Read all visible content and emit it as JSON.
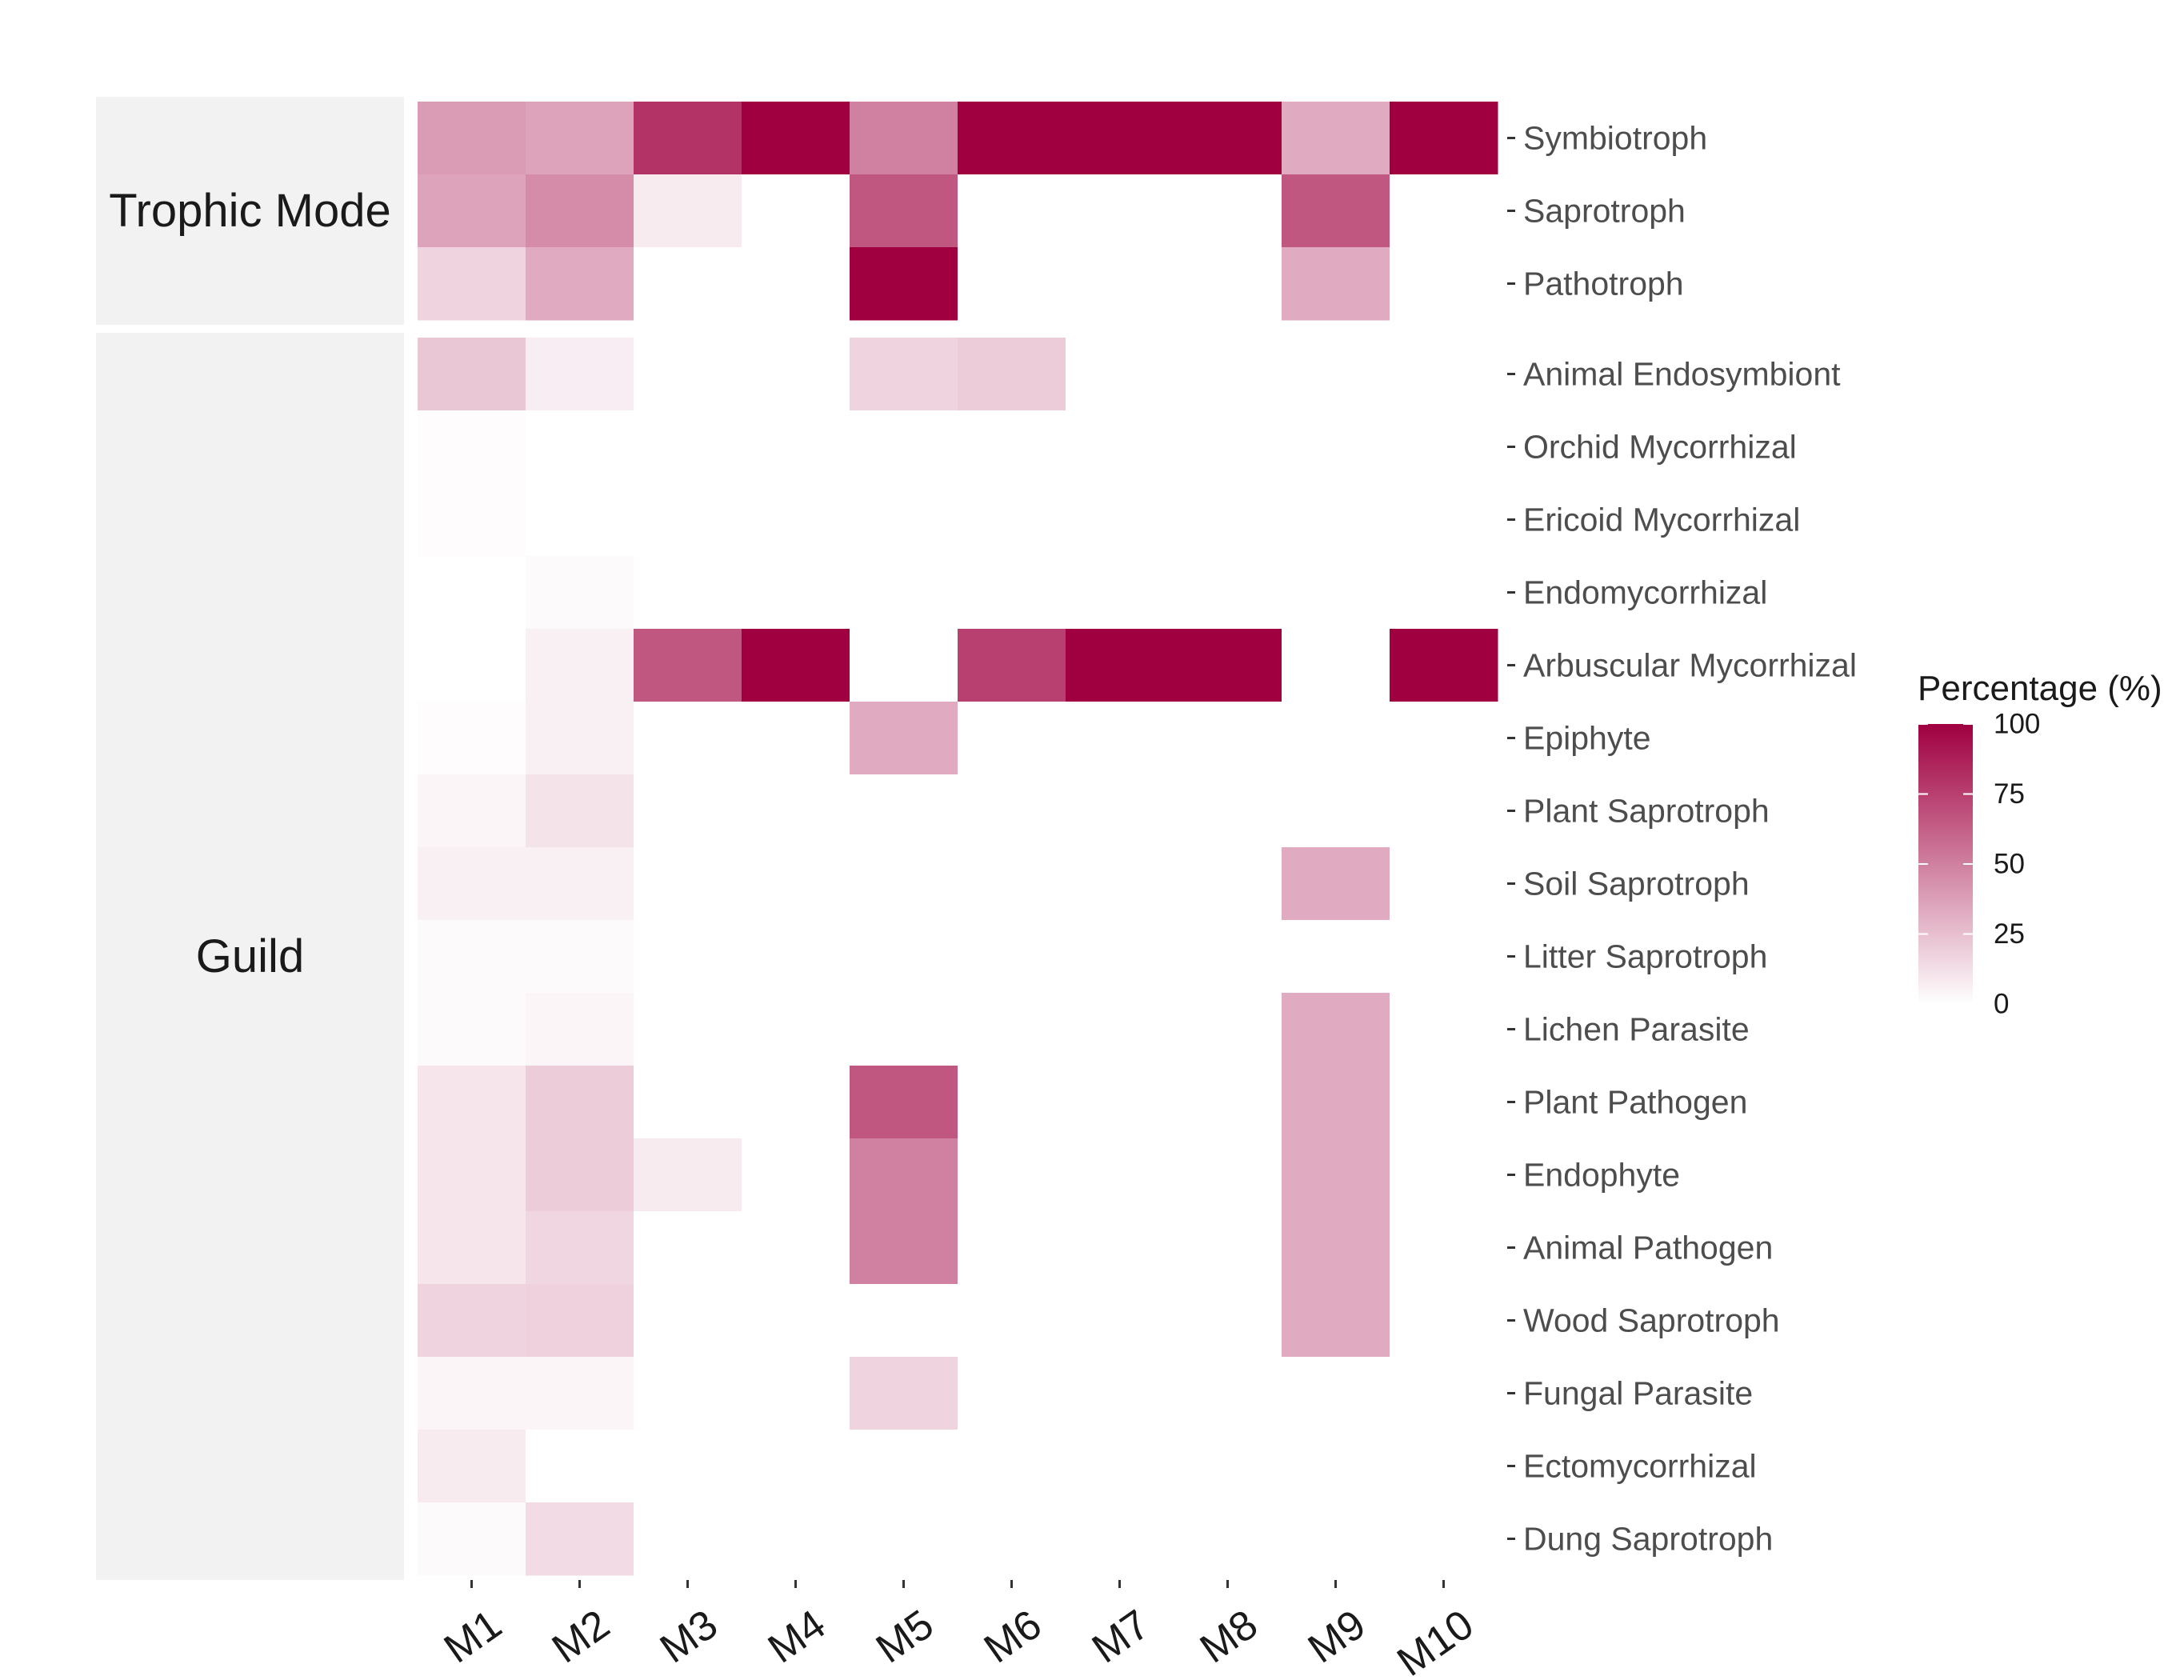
{
  "chart_data": {
    "type": "heatmap",
    "columns": [
      "M1",
      "M2",
      "M3",
      "M4",
      "M5",
      "M6",
      "M7",
      "M8",
      "M9",
      "M10"
    ],
    "facets": [
      {
        "label": "Trophic Mode",
        "rows": [
          "Symbiotroph",
          "Saprotroph",
          "Pathotroph"
        ],
        "values": [
          [
            39,
            36,
            80,
            100,
            50,
            100,
            100,
            100,
            33,
            100
          ],
          [
            36,
            45,
            8,
            0,
            66,
            0,
            0,
            0,
            66,
            0
          ],
          [
            17,
            33,
            0,
            0,
            100,
            0,
            0,
            0,
            33,
            0
          ]
        ]
      },
      {
        "label": "Guild",
        "rows": [
          "Animal Endosymbiont",
          "Orchid Mycorrhizal",
          "Ericoid Mycorrhizal",
          "Endomycorrhizal",
          "Arbuscular Mycorrhizal",
          "Epiphyte",
          "Plant Saprotroph",
          "Soil Saprotroph",
          "Litter Saprotroph",
          "Lichen Parasite",
          "Plant Pathogen",
          "Endophyte",
          "Animal Pathogen",
          "Wood Saprotroph",
          "Fungal Parasite",
          "Ectomycorrhizal",
          "Dung Saprotroph"
        ],
        "values": [
          [
            22,
            7,
            0,
            0,
            17,
            20,
            0,
            0,
            0,
            0
          ],
          [
            1,
            0,
            0,
            0,
            0,
            0,
            0,
            0,
            0,
            0
          ],
          [
            1,
            0,
            0,
            0,
            0,
            0,
            0,
            0,
            0,
            0
          ],
          [
            0,
            2,
            0,
            0,
            0,
            0,
            0,
            0,
            0,
            0
          ],
          [
            0,
            6,
            66,
            100,
            0,
            75,
            100,
            100,
            0,
            100
          ],
          [
            1,
            6,
            0,
            0,
            33,
            0,
            0,
            0,
            0,
            0
          ],
          [
            4,
            11,
            0,
            0,
            0,
            0,
            0,
            0,
            0,
            0
          ],
          [
            6,
            6,
            0,
            0,
            0,
            0,
            0,
            0,
            33,
            0
          ],
          [
            2,
            2,
            0,
            0,
            0,
            0,
            0,
            0,
            0,
            0
          ],
          [
            2,
            4,
            0,
            0,
            0,
            0,
            0,
            0,
            33,
            0
          ],
          [
            10,
            20,
            0,
            0,
            66,
            0,
            0,
            0,
            33,
            0
          ],
          [
            10,
            20,
            8,
            0,
            50,
            0,
            0,
            0,
            33,
            0
          ],
          [
            10,
            16,
            0,
            0,
            50,
            0,
            0,
            0,
            33,
            0
          ],
          [
            17,
            18,
            0,
            0,
            0,
            0,
            0,
            0,
            33,
            0
          ],
          [
            4,
            4,
            0,
            0,
            17,
            0,
            0,
            0,
            0,
            0
          ],
          [
            8,
            0,
            0,
            0,
            0,
            0,
            0,
            0,
            0,
            0
          ],
          [
            2,
            14,
            0,
            0,
            0,
            0,
            0,
            0,
            0,
            0
          ]
        ]
      }
    ],
    "legend": {
      "title": "Percentage (%)",
      "ticks": [
        0,
        25,
        50,
        75,
        100
      ],
      "range": [
        0,
        100
      ],
      "position": "right"
    },
    "colors": {
      "low": "#ffffff",
      "high": "#a00040"
    }
  }
}
